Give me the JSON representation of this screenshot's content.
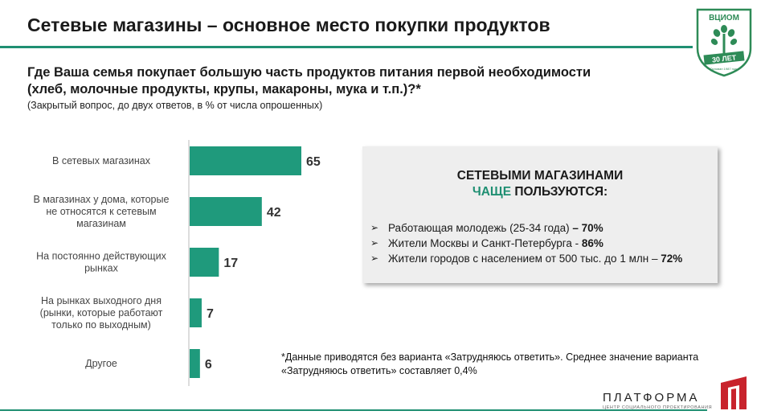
{
  "slide": {
    "title": "Сетевые  магазины – основное место покупки продуктов",
    "question": "Где Ваша семья покупает большую часть продуктов питания первой необходимости (хлеб, молочные продукты, крупы, макароны, мука и т.п.)?*",
    "note": "(Закрытый вопрос, до двух ответов, в % от числа опрошенных)"
  },
  "logo": {
    "name": "ВЦИОМ",
    "years": "30 ЛЕТ",
    "founded": "Основан 1987 году",
    "icon": "tree-shield-icon"
  },
  "chart_data": {
    "type": "bar",
    "orientation": "horizontal",
    "categories": [
      [
        "В сетевых магазинах"
      ],
      [
        "В магазинах у дома, которые",
        "не относятся к сетевым",
        "магазинам"
      ],
      [
        "На  постоянно действующих",
        "рынках"
      ],
      [
        "На рынках выходного дня",
        "(рынки, которые работают",
        "только по выходным)"
      ],
      [
        "Другое"
      ]
    ],
    "values": [
      65,
      42,
      17,
      7,
      6
    ],
    "color": "#1f9a7c",
    "xlim": [
      0,
      100
    ],
    "grid": false
  },
  "info_box": {
    "heading_line1": "СЕТЕВЫМИ МАГАЗИНАМИ",
    "heading_accent": "ЧАЩЕ",
    "heading_rest": " ПОЛЬЗУЮТСЯ:",
    "items": [
      {
        "text": "Работающая молодежь (25-34 года) ",
        "value": "– 70%"
      },
      {
        "text": "Жители  Москвы и Санкт-Петербурга   - ",
        "value": "86%"
      },
      {
        "text": "Жители  городов с населением  от 500 тыс. до 1 млн  – ",
        "value": "72%"
      }
    ],
    "bullet_icon": "arrowhead-bullet-icon"
  },
  "footnote": "*Данные приводятся без варианта «Затрудняюсь ответить». Среднее значение варианта «Затрудняюсь ответить» составляет 0,4%",
  "brand": {
    "name": "ПЛАТФОРМА",
    "subtitle": "ЦЕНТР СОЦИАЛЬНОГО ПРОЕКТИРОВАНИЯ",
    "icon": "platforma-logo-icon",
    "color": "#c8232c"
  },
  "accent_color": "#1f8f72"
}
